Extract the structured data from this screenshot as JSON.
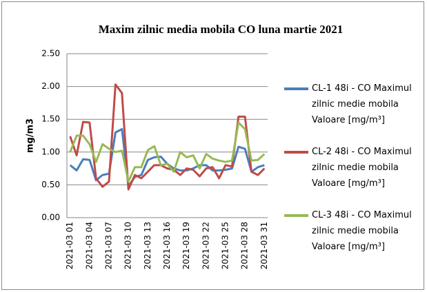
{
  "chart_data": {
    "type": "line",
    "title": "Maxim zilnic media mobila CO luna martie 2021",
    "y_label": "mg/m3",
    "categories": [
      "2021-03 01",
      null,
      null,
      "2021-03 04",
      null,
      null,
      "2021-03 07",
      null,
      null,
      "2021-03 10",
      null,
      null,
      "2021-03 13",
      null,
      null,
      "2021-03 16",
      null,
      null,
      "2021-03 19",
      null,
      null,
      "2021-03 22",
      null,
      null,
      "2021-03 25",
      null,
      null,
      "2021-03 28",
      null,
      null,
      "2021-03 31"
    ],
    "series": [
      {
        "name": "CL-1 48i - CO Maximul zilnic medie mobila Valoare [mg/m³]",
        "color": "#4a7ebb",
        "values": [
          0.8,
          0.72,
          0.89,
          0.88,
          0.57,
          0.65,
          0.67,
          1.3,
          1.35,
          0.48,
          0.62,
          0.65,
          0.88,
          0.92,
          0.93,
          0.82,
          0.75,
          0.72,
          0.72,
          0.75,
          0.8,
          0.8,
          0.72,
          0.72,
          0.73,
          0.75,
          1.08,
          1.05,
          0.7,
          0.77,
          0.8
        ]
      },
      {
        "name": "CL-2 48i - CO Maximul zilnic medie mobila Valoare [mg/m³]",
        "color": "#be4b48",
        "values": [
          1.24,
          0.95,
          1.46,
          1.45,
          0.6,
          0.47,
          0.55,
          2.03,
          1.9,
          0.43,
          0.65,
          0.6,
          0.7,
          0.8,
          0.8,
          0.75,
          0.73,
          0.65,
          0.75,
          0.73,
          0.63,
          0.75,
          0.77,
          0.6,
          0.8,
          0.78,
          1.54,
          1.54,
          0.7,
          0.65,
          0.75
        ]
      },
      {
        "name": "CL-3 48i - CO Maximul zilnic medie mobila Valoare [mg/m³]",
        "color": "#98b954",
        "values": [
          1.0,
          1.25,
          1.25,
          1.12,
          0.85,
          1.12,
          1.05,
          1.0,
          1.02,
          0.55,
          0.77,
          0.77,
          1.03,
          1.09,
          0.8,
          0.82,
          0.7,
          1.0,
          0.92,
          0.95,
          0.75,
          0.97,
          0.9,
          0.87,
          0.85,
          0.87,
          1.45,
          1.35,
          0.87,
          0.88,
          0.97
        ]
      }
    ],
    "ylim": [
      0,
      2.5
    ],
    "yticks": [
      {
        "value": 0,
        "label": "0.00"
      },
      {
        "value": 0.5,
        "label": "0.50"
      },
      {
        "value": 1,
        "label": "1.00"
      },
      {
        "value": 1.5,
        "label": "1.50"
      },
      {
        "value": 2,
        "label": "2.00"
      },
      {
        "value": 2.5,
        "label": "2.50"
      }
    ],
    "grid": true,
    "legend": "right"
  }
}
